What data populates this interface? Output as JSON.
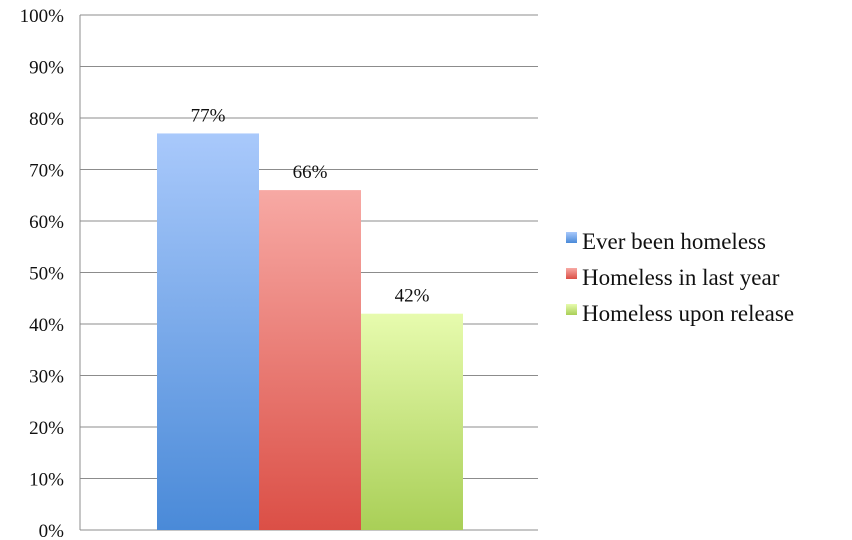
{
  "chart_data": {
    "type": "bar",
    "categories": [
      ""
    ],
    "series": [
      {
        "name": "Ever been homeless",
        "values": [
          77
        ],
        "label": "77%"
      },
      {
        "name": "Homeless in last year",
        "values": [
          66
        ],
        "label": "66%"
      },
      {
        "name": "Homeless upon release",
        "values": [
          42
        ],
        "label": "42%"
      }
    ],
    "ylim": [
      0,
      100
    ],
    "yticks": [
      "0%",
      "10%",
      "20%",
      "30%",
      "40%",
      "50%",
      "60%",
      "70%",
      "80%",
      "90%",
      "100%"
    ],
    "grid": true,
    "legend": "right",
    "colors": {
      "Ever been homeless": [
        "#a9c9fb",
        "#4a8ad8"
      ],
      "Homeless in last year": [
        "#f7a9a4",
        "#db4f46"
      ],
      "Homeless upon release": [
        "#e7fbae",
        "#a9cf57"
      ]
    }
  }
}
